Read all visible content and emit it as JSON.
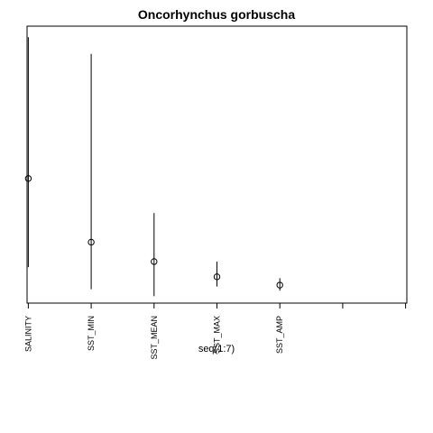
{
  "chart_data": {
    "type": "scatter",
    "title": "Oncorhynchus gorbuscha",
    "xlabel": "seq(1:7)",
    "ylabel": "",
    "categories": [
      "SALINITY",
      "SST_MIN",
      "SST_MEAN",
      "SST_MAX",
      "SST_AMP",
      "",
      ""
    ],
    "x": [
      1,
      2,
      3,
      4,
      5,
      6,
      7
    ],
    "points": [
      {
        "x": 1,
        "y": 0.49,
        "low": 0.17,
        "high": 1.0
      },
      {
        "x": 2,
        "y": 0.26,
        "low": 0.09,
        "high": 0.94
      },
      {
        "x": 3,
        "y": 0.19,
        "low": 0.065,
        "high": 0.365
      },
      {
        "x": 4,
        "y": 0.135,
        "low": 0.1,
        "high": 0.19
      },
      {
        "x": 5,
        "y": 0.105,
        "low": 0.085,
        "high": 0.13
      }
    ],
    "xlim": [
      0.98,
      7.02
    ],
    "ylim": [
      0.04,
      1.04
    ],
    "y_axis_shown": false,
    "grid": false,
    "legend": "none",
    "colors": {
      "marks": "#000000",
      "box": "#000000"
    }
  }
}
